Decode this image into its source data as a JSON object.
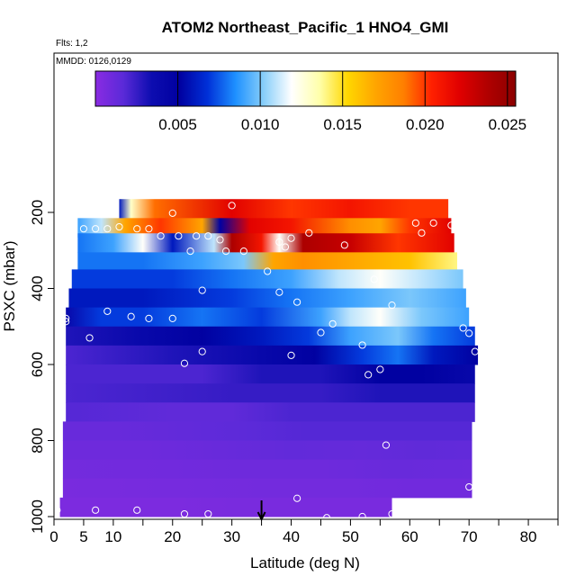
{
  "chart_data": {
    "type": "heatmap",
    "title": "ATOM2 Northeast_Pacific_1 HNO4_GMI",
    "subtitle_flights": "Flts: 1,2",
    "subtitle_dates": "MMDD: 0126,0129",
    "xlabel": "Latitude (deg N)",
    "ylabel": "PSXC (mbar)",
    "xlim": [
      0,
      85
    ],
    "ylim": [
      1000,
      100
    ],
    "y_reversed": true,
    "x_ticks_labeled": [
      0,
      5,
      10,
      20,
      30,
      40,
      50,
      60,
      70,
      80
    ],
    "x_ticks_unlabeled": [
      15,
      25,
      35,
      45,
      55,
      65,
      75,
      85
    ],
    "y_ticks": [
      200,
      400,
      600,
      800,
      1000
    ],
    "colorbar": {
      "min": 0.0,
      "max": 0.0255,
      "ticks": [
        0.005,
        0.01,
        0.015,
        0.02,
        0.025
      ],
      "tick_labels": [
        "0.005",
        "0.010",
        "0.015",
        "0.020",
        "0.025"
      ],
      "colormap": [
        "#8a2be2",
        "#5a2ad8",
        "#0d0db0",
        "#0000a0",
        "#0030d8",
        "#1e90ff",
        "#87cefa",
        "#ffffff",
        "#ffffaa",
        "#ffd700",
        "#ffa500",
        "#ff7f00",
        "#ff2000",
        "#e00000",
        "#b00000",
        "#8b0000"
      ]
    },
    "marker_latitude": 35,
    "bands": [
      {
        "p": 190,
        "x0": 11,
        "x1": 66.5,
        "segs": [
          [
            11,
            0.006
          ],
          [
            13,
            0.013
          ],
          [
            17,
            0.019
          ],
          [
            30,
            0.022
          ],
          [
            40,
            0.02
          ],
          [
            50,
            0.021
          ],
          [
            60,
            0.02
          ],
          [
            66.5,
            0.02
          ]
        ]
      },
      {
        "p": 240,
        "x0": 4,
        "x1": 67,
        "segs": [
          [
            4,
            0.009
          ],
          [
            8,
            0.011
          ],
          [
            12,
            0.017
          ],
          [
            18,
            0.02
          ],
          [
            25,
            0.017
          ],
          [
            28,
            0.005
          ],
          [
            33,
            0.022
          ],
          [
            40,
            0.021
          ],
          [
            50,
            0.018
          ],
          [
            55,
            0.017
          ],
          [
            60,
            0.02
          ],
          [
            67,
            0.022
          ]
        ]
      },
      {
        "p": 280,
        "x0": 4,
        "x1": 67.5,
        "segs": [
          [
            4,
            0.008
          ],
          [
            10,
            0.009
          ],
          [
            15,
            0.012
          ],
          [
            20,
            0.006
          ],
          [
            27,
            0.011
          ],
          [
            30,
            0.024
          ],
          [
            35,
            0.021
          ],
          [
            38,
            0.012
          ],
          [
            42,
            0.024
          ],
          [
            50,
            0.023
          ],
          [
            58,
            0.02
          ],
          [
            67.5,
            0.022
          ]
        ]
      },
      {
        "p": 330,
        "x0": 4,
        "x1": 68,
        "segs": [
          [
            4,
            0.008
          ],
          [
            15,
            0.008
          ],
          [
            25,
            0.009
          ],
          [
            32,
            0.01
          ],
          [
            37,
            0.017
          ],
          [
            42,
            0.018
          ],
          [
            50,
            0.017
          ],
          [
            60,
            0.016
          ],
          [
            68,
            0.014
          ]
        ]
      },
      {
        "p": 375,
        "x0": 3,
        "x1": 69,
        "segs": [
          [
            3,
            0.007
          ],
          [
            20,
            0.007
          ],
          [
            30,
            0.008
          ],
          [
            40,
            0.009
          ],
          [
            48,
            0.011
          ],
          [
            55,
            0.012
          ],
          [
            62,
            0.011
          ],
          [
            69,
            0.01
          ]
        ]
      },
      {
        "p": 425,
        "x0": 2.5,
        "x1": 69.5,
        "segs": [
          [
            2.5,
            0.006
          ],
          [
            15,
            0.006
          ],
          [
            30,
            0.007
          ],
          [
            40,
            0.008
          ],
          [
            50,
            0.009
          ],
          [
            60,
            0.01
          ],
          [
            69.5,
            0.009
          ]
        ]
      },
      {
        "p": 475,
        "x0": 2,
        "x1": 70,
        "segs": [
          [
            2,
            0.004
          ],
          [
            8,
            0.007
          ],
          [
            15,
            0.007
          ],
          [
            25,
            0.008
          ],
          [
            35,
            0.007
          ],
          [
            45,
            0.009
          ],
          [
            50,
            0.011
          ],
          [
            55,
            0.012
          ],
          [
            62,
            0.01
          ],
          [
            70,
            0.009
          ]
        ]
      },
      {
        "p": 525,
        "x0": 2,
        "x1": 71,
        "segs": [
          [
            2,
            0.003
          ],
          [
            15,
            0.004
          ],
          [
            25,
            0.005
          ],
          [
            35,
            0.006
          ],
          [
            43,
            0.007
          ],
          [
            50,
            0.009
          ],
          [
            58,
            0.01
          ],
          [
            64,
            0.008
          ],
          [
            71,
            0.007
          ]
        ]
      },
      {
        "p": 575,
        "x0": 2,
        "x1": 71.5,
        "segs": [
          [
            2,
            0.002
          ],
          [
            20,
            0.003
          ],
          [
            35,
            0.004
          ],
          [
            44,
            0.005
          ],
          [
            52,
            0.007
          ],
          [
            58,
            0.008
          ],
          [
            64,
            0.006
          ],
          [
            71.5,
            0.005
          ]
        ]
      },
      {
        "p": 625,
        "x0": 2,
        "x1": 71,
        "segs": [
          [
            2,
            0.002
          ],
          [
            25,
            0.002
          ],
          [
            35,
            0.003
          ],
          [
            45,
            0.003
          ],
          [
            55,
            0.005
          ],
          [
            62,
            0.005
          ],
          [
            71,
            0.004
          ]
        ]
      },
      {
        "p": 675,
        "x0": 2,
        "x1": 71,
        "segs": [
          [
            2,
            0.002
          ],
          [
            30,
            0.0025
          ],
          [
            45,
            0.0025
          ],
          [
            55,
            0.003
          ],
          [
            65,
            0.003
          ],
          [
            71,
            0.003
          ]
        ]
      },
      {
        "p": 725,
        "x0": 2,
        "x1": 71,
        "segs": [
          [
            2,
            0.0018
          ],
          [
            20,
            0.0015
          ],
          [
            30,
            0.0015
          ],
          [
            40,
            0.002
          ],
          [
            50,
            0.002
          ],
          [
            60,
            0.002
          ],
          [
            71,
            0.002
          ]
        ]
      },
      {
        "p": 775,
        "x0": 1.5,
        "x1": 70.5,
        "segs": [
          [
            1.5,
            0.0012
          ],
          [
            10,
            0.0012
          ],
          [
            22,
            0.0014
          ],
          [
            32,
            0.0016
          ],
          [
            42,
            0.0018
          ],
          [
            55,
            0.0018
          ],
          [
            70.5,
            0.0018
          ]
        ]
      },
      {
        "p": 825,
        "x0": 1.5,
        "x1": 70.5,
        "segs": [
          [
            1.5,
            0.001
          ],
          [
            15,
            0.001
          ],
          [
            28,
            0.0012
          ],
          [
            40,
            0.0014
          ],
          [
            52,
            0.0013
          ],
          [
            62,
            0.0015
          ],
          [
            70.5,
            0.0014
          ]
        ]
      },
      {
        "p": 875,
        "x0": 1.5,
        "x1": 70.5,
        "segs": [
          [
            1.5,
            0.0008
          ],
          [
            20,
            0.0009
          ],
          [
            32,
            0.001
          ],
          [
            45,
            0.001
          ],
          [
            58,
            0.0012
          ],
          [
            70.5,
            0.0011
          ]
        ]
      },
      {
        "p": 925,
        "x0": 1.5,
        "x1": 70.5,
        "segs": [
          [
            1.5,
            0.0006
          ],
          [
            20,
            0.0007
          ],
          [
            35,
            0.0008
          ],
          [
            50,
            0.0008
          ],
          [
            60,
            0.0009
          ],
          [
            70.5,
            0.0009
          ]
        ]
      },
      {
        "p": 975,
        "x0": 1,
        "x1": 57,
        "segs": [
          [
            1,
            0.0005
          ],
          [
            20,
            0.0005
          ],
          [
            30,
            0.0006
          ],
          [
            45,
            0.0006
          ],
          [
            57,
            0.0006
          ]
        ]
      }
    ],
    "points": [
      [
        20,
        202
      ],
      [
        30,
        182
      ],
      [
        11,
        238
      ],
      [
        14,
        243
      ],
      [
        16,
        243
      ],
      [
        5,
        243
      ],
      [
        9,
        243
      ],
      [
        7,
        243
      ],
      [
        61,
        228
      ],
      [
        64,
        228
      ],
      [
        67,
        234
      ],
      [
        62,
        254
      ],
      [
        43,
        254
      ],
      [
        18,
        262
      ],
      [
        21,
        262
      ],
      [
        24,
        262
      ],
      [
        26,
        262
      ],
      [
        28,
        272
      ],
      [
        23,
        302
      ],
      [
        29,
        302
      ],
      [
        32,
        302
      ],
      [
        40,
        268
      ],
      [
        38,
        278
      ],
      [
        39,
        291
      ],
      [
        49,
        286
      ],
      [
        36,
        355
      ],
      [
        54,
        376
      ],
      [
        25,
        405
      ],
      [
        38,
        410
      ],
      [
        41,
        436
      ],
      [
        57,
        444
      ],
      [
        9,
        460
      ],
      [
        13,
        474
      ],
      [
        16,
        479
      ],
      [
        20,
        479
      ],
      [
        2,
        487
      ],
      [
        2,
        479
      ],
      [
        47,
        493
      ],
      [
        45,
        516
      ],
      [
        69,
        504
      ],
      [
        70,
        518
      ],
      [
        6,
        530
      ],
      [
        52,
        549
      ],
      [
        25,
        566
      ],
      [
        71,
        566
      ],
      [
        40,
        576
      ],
      [
        22,
        597
      ],
      [
        55,
        613
      ],
      [
        53,
        627
      ],
      [
        56,
        812
      ],
      [
        70,
        922
      ],
      [
        41,
        952
      ],
      [
        0.5,
        983
      ],
      [
        7,
        983
      ],
      [
        14,
        983
      ],
      [
        22,
        993
      ],
      [
        26,
        993
      ],
      [
        46,
        1003
      ],
      [
        52,
        1000
      ],
      [
        57,
        993
      ]
    ]
  }
}
